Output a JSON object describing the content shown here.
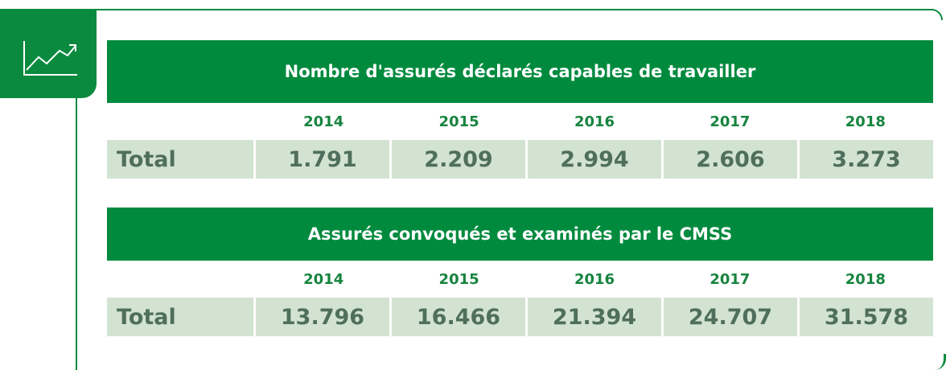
{
  "tables": [
    {
      "title": "Nombre d'assurés déclarés capables de travailler",
      "years": [
        "2014",
        "2015",
        "2016",
        "2017",
        "2018"
      ],
      "row_label": "Total",
      "values": [
        "1.791",
        "2.209",
        "2.994",
        "2.606",
        "3.273"
      ]
    },
    {
      "title": "Assurés convoqués et examinés par le CMSS",
      "years": [
        "2014",
        "2015",
        "2016",
        "2017",
        "2018"
      ],
      "row_label": "Total",
      "values": [
        "13.796",
        "16.466",
        "21.394",
        "24.707",
        "31.578"
      ]
    }
  ]
}
